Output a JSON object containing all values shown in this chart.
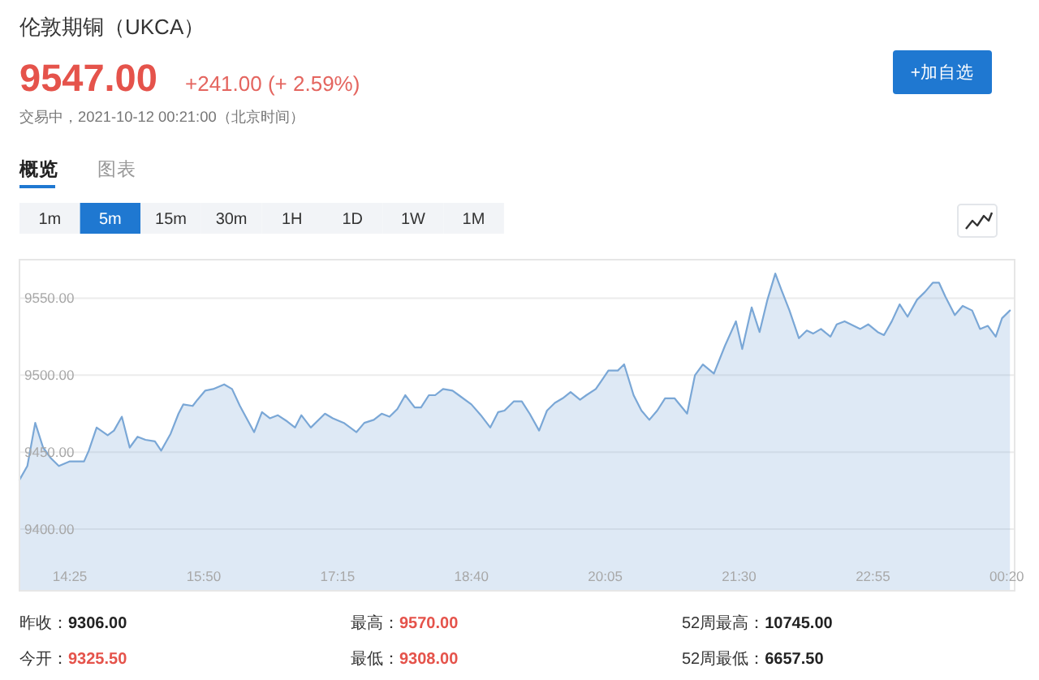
{
  "chart_data": {
    "type": "area",
    "title": "伦敦期铜（UKCA）",
    "annotations": [
      "9547.00",
      "+241.00 (+ 2.59%)",
      "交易中，2021-10-12 00:21:00（北京时间）",
      "+加自选",
      "概览",
      "图表",
      "1m",
      "5m",
      "15m",
      "30m",
      "1H",
      "1D",
      "1W",
      "1M",
      "昨收：9306.00",
      "今开：9325.50",
      "最高：9570.00",
      "最低：9308.00",
      "52周最高：10745.00",
      "52周最低：6657.50"
    ],
    "x": [
      "2021-10-11T13:53",
      "2021-10-11T13:58",
      "2021-10-11T14:03",
      "2021-10-11T14:08",
      "2021-10-11T14:13",
      "2021-10-11T14:18",
      "2021-10-11T14:25",
      "2021-10-11T14:34",
      "2021-10-11T14:37",
      "2021-10-11T14:42",
      "2021-10-11T14:49",
      "2021-10-11T14:53",
      "2021-10-11T14:58",
      "2021-10-11T15:03",
      "2021-10-11T15:08",
      "2021-10-11T15:13",
      "2021-10-11T15:19",
      "2021-10-11T15:23",
      "2021-10-11T15:29",
      "2021-10-11T15:34",
      "2021-10-11T15:37",
      "2021-10-11T15:43",
      "2021-10-11T15:46",
      "2021-10-11T15:51",
      "2021-10-11T15:56",
      "2021-10-11T16:03",
      "2021-10-11T16:08",
      "2021-10-11T16:13",
      "2021-10-11T16:22",
      "2021-10-11T16:27",
      "2021-10-11T16:32",
      "2021-10-11T16:37",
      "2021-10-11T16:43",
      "2021-10-11T16:48",
      "2021-10-11T16:52",
      "2021-10-11T16:58",
      "2021-10-11T17:07",
      "2021-10-11T17:12",
      "2021-10-11T17:19",
      "2021-10-11T17:27",
      "2021-10-11T17:32",
      "2021-10-11T17:38",
      "2021-10-11T17:43",
      "2021-10-11T17:48",
      "2021-10-11T17:53",
      "2021-10-11T17:58",
      "2021-10-11T18:04",
      "2021-10-11T18:08",
      "2021-10-11T18:13",
      "2021-10-11T18:17",
      "2021-10-11T18:22",
      "2021-10-11T18:28",
      "2021-10-11T18:32",
      "2021-10-11T18:40",
      "2021-10-11T18:46",
      "2021-10-11T18:52",
      "2021-10-11T18:57",
      "2021-10-11T19:01",
      "2021-10-11T19:07",
      "2021-10-11T19:12",
      "2021-10-11T19:17",
      "2021-10-11T19:23",
      "2021-10-11T19:28",
      "2021-10-11T19:33",
      "2021-10-11T19:38",
      "2021-10-11T19:43",
      "2021-10-11T19:49",
      "2021-10-11T19:53",
      "2021-10-11T19:59",
      "2021-10-11T20:03",
      "2021-10-11T20:07",
      "2021-10-11T20:13",
      "2021-10-11T20:17",
      "2021-10-11T20:23",
      "2021-10-11T20:28",
      "2021-10-11T20:33",
      "2021-10-11T20:38",
      "2021-10-11T20:43",
      "2021-10-11T20:49",
      "2021-10-11T20:53",
      "2021-10-11T20:57",
      "2021-10-11T21:02",
      "2021-10-11T21:07",
      "2021-10-11T21:14",
      "2021-10-11T21:21",
      "2021-10-11T21:28",
      "2021-10-11T21:32",
      "2021-10-11T21:38",
      "2021-10-11T21:43",
      "2021-10-11T21:48",
      "2021-10-11T21:53",
      "2021-10-11T21:57",
      "2021-10-11T22:02",
      "2021-10-11T22:08",
      "2021-10-11T22:13",
      "2021-10-11T22:17",
      "2021-10-11T22:22",
      "2021-10-11T22:28",
      "2021-10-11T22:32",
      "2021-10-11T22:37",
      "2021-10-11T22:47",
      "2021-10-11T22:52",
      "2021-10-11T22:58",
      "2021-10-11T23:02",
      "2021-10-11T23:07",
      "2021-10-11T23:12",
      "2021-10-11T23:17",
      "2021-10-11T23:23",
      "2021-10-11T23:28",
      "2021-10-11T23:33",
      "2021-10-11T23:37",
      "2021-10-11T23:41",
      "2021-10-11T23:47",
      "2021-10-11T23:52",
      "2021-10-11T23:58",
      "2021-10-12T00:03",
      "2021-10-12T00:08",
      "2021-10-12T00:13",
      "2021-10-12T00:17",
      "2021-10-12T00:22"
    ],
    "values": [
      9432,
      9441,
      9469,
      9453,
      9446,
      9441,
      9444,
      9444,
      9451,
      9466,
      9461,
      9464,
      9473,
      9453,
      9460,
      9458,
      9457,
      9451,
      9462,
      9475,
      9481,
      9480,
      9484,
      9490,
      9491,
      9494,
      9491,
      9480,
      9463,
      9476,
      9472,
      9474,
      9470,
      9466,
      9474,
      9466,
      9475,
      9472,
      9469,
      9463,
      9469,
      9471,
      9475,
      9473,
      9478,
      9487,
      9479,
      9479,
      9487,
      9487,
      9491,
      9490,
      9487,
      9481,
      9474,
      9466,
      9476,
      9477,
      9483,
      9483,
      9475,
      9464,
      9477,
      9482,
      9485,
      9489,
      9484,
      9487,
      9491,
      9497,
      9503,
      9503,
      9507,
      9487,
      9477,
      9471,
      9477,
      9485,
      9485,
      9480,
      9475,
      9500,
      9507,
      9501,
      9519,
      9535,
      9517,
      9544,
      9528,
      9549,
      9566,
      9555,
      9542,
      9524,
      9529,
      9527,
      9530,
      9525,
      9533,
      9535,
      9530,
      9533,
      9528,
      9526,
      9535,
      9546,
      9538,
      9549,
      9554,
      9560,
      9560,
      9551,
      9539,
      9545,
      9542,
      9530,
      9532,
      9525,
      9537,
      9542
    ],
    "color": "#7aa7d6",
    "xlim": [
      "2021-10-11T13:53",
      "2021-10-12T00:25"
    ],
    "ylim": [
      9360,
      9575
    ],
    "xticks": [
      {
        "value": "2021-10-11T14:25",
        "label": "14:25"
      },
      {
        "value": "2021-10-11T15:50",
        "label": "15:50"
      },
      {
        "value": "2021-10-11T17:15",
        "label": "17:15"
      },
      {
        "value": "2021-10-11T18:40",
        "label": "18:40"
      },
      {
        "value": "2021-10-11T20:05",
        "label": "20:05"
      },
      {
        "value": "2021-10-11T21:30",
        "label": "21:30"
      },
      {
        "value": "2021-10-11T22:55",
        "label": "22:55"
      },
      {
        "value": "2021-10-12T00:20",
        "label": "00:20"
      }
    ],
    "yticks": [
      {
        "value": 9400,
        "label": "9400.00"
      },
      {
        "value": 9450,
        "label": "9450.00"
      },
      {
        "value": 9500,
        "label": "9500.00"
      },
      {
        "value": 9550,
        "label": "9550.00"
      }
    ],
    "grid": "y"
  }
}
